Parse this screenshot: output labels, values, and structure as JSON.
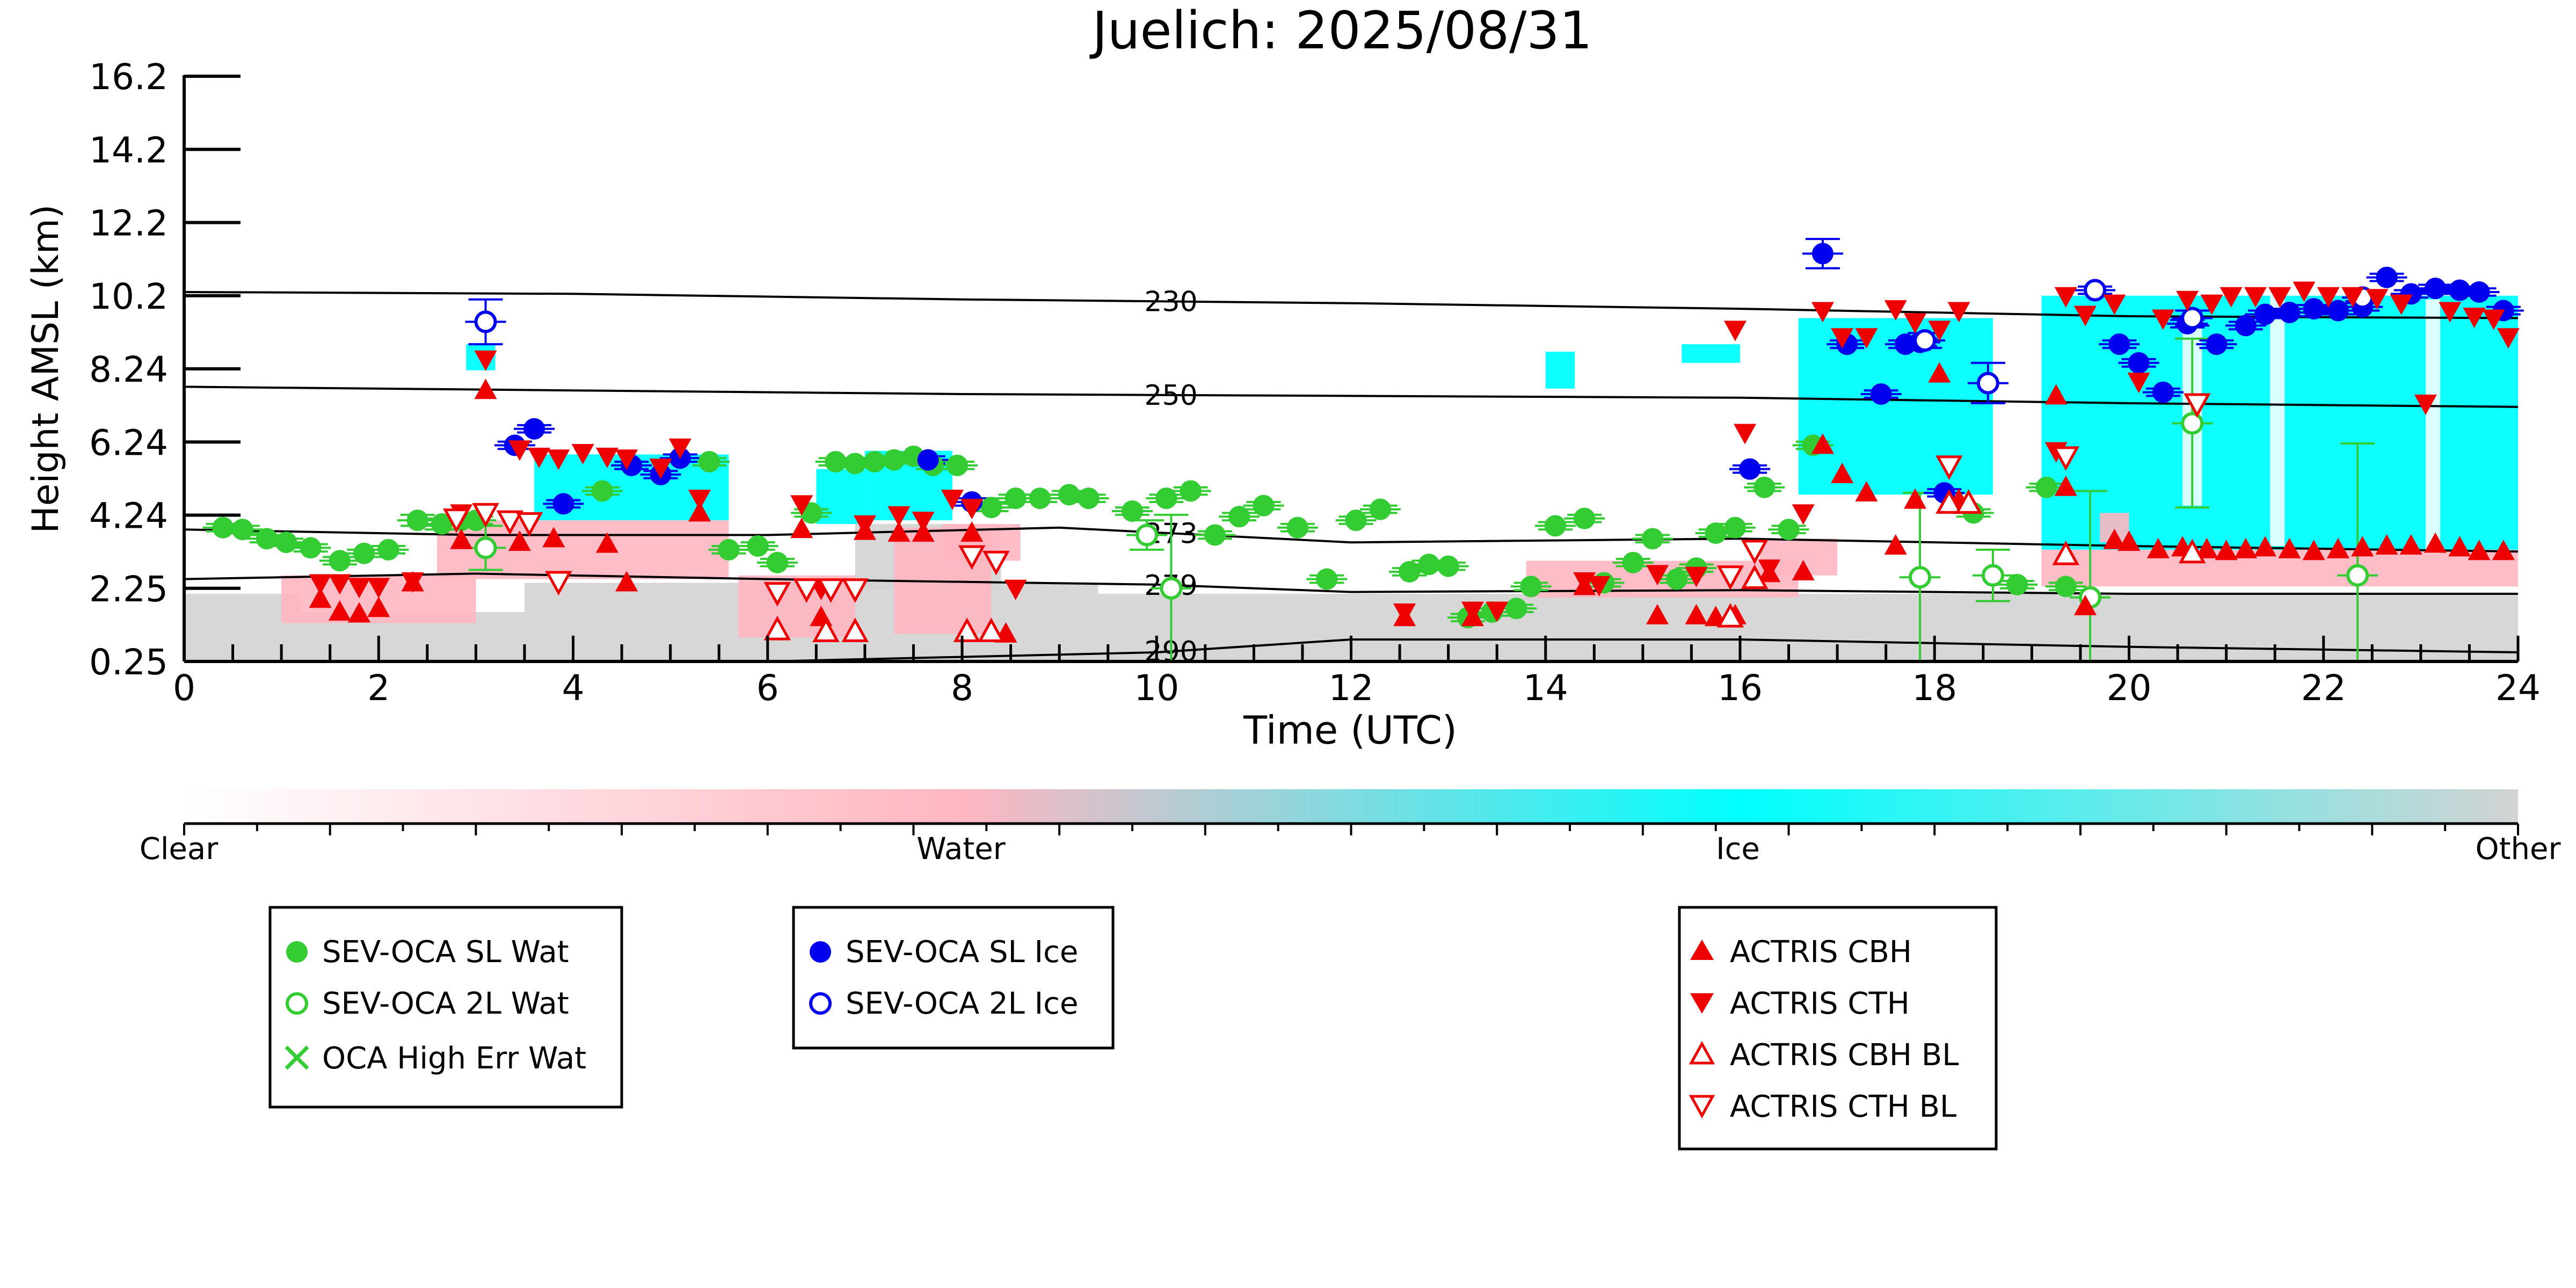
{
  "chart_data": {
    "type": "scatter",
    "title": "Juelich: 2025/08/31",
    "xlabel": "Time (UTC)",
    "ylabel": "Height AMSL (km)",
    "xlim": [
      0,
      24
    ],
    "ylim": [
      0.25,
      16.2
    ],
    "xticks": [
      "0",
      "2",
      "4",
      "6",
      "8",
      "10",
      "12",
      "14",
      "16",
      "18",
      "20",
      "22",
      "24"
    ],
    "yticks": [
      "0.25",
      "2.25",
      "4.24",
      "6.24",
      "8.24",
      "10.2",
      "12.2",
      "14.2",
      "16.2"
    ],
    "ytick_values": [
      0.25,
      2.25,
      4.24,
      6.24,
      8.24,
      10.2,
      12.2,
      14.2,
      16.2
    ],
    "colorbar": {
      "labels": [
        "Clear",
        "Water",
        "Ice",
        "Other"
      ],
      "colors": [
        "#ffffff",
        "#ffb6c1",
        "#00ffff",
        "#d3d3d3"
      ]
    },
    "contours": [
      {
        "label": "230",
        "points": [
          [
            0,
            10.3
          ],
          [
            4,
            10.25
          ],
          [
            8,
            10.1
          ],
          [
            12,
            10.0
          ],
          [
            16,
            9.85
          ],
          [
            20,
            9.65
          ],
          [
            24,
            9.6
          ]
        ],
        "label_x": 10.15
      },
      {
        "label": "250",
        "points": [
          [
            0,
            7.75
          ],
          [
            4,
            7.65
          ],
          [
            8,
            7.55
          ],
          [
            12,
            7.5
          ],
          [
            16,
            7.45
          ],
          [
            20,
            7.3
          ],
          [
            24,
            7.2
          ]
        ],
        "label_x": 10.15
      },
      {
        "label": "273",
        "points": [
          [
            0,
            3.85
          ],
          [
            3,
            3.7
          ],
          [
            6,
            3.7
          ],
          [
            9,
            3.9
          ],
          [
            12,
            3.5
          ],
          [
            16,
            3.6
          ],
          [
            20,
            3.4
          ],
          [
            24,
            3.25
          ]
        ],
        "label_x": 10.15
      },
      {
        "label": "279",
        "points": [
          [
            0,
            2.5
          ],
          [
            3,
            2.65
          ],
          [
            6,
            2.5
          ],
          [
            10,
            2.35
          ],
          [
            12,
            2.15
          ],
          [
            16,
            2.2
          ],
          [
            20,
            2.1
          ],
          [
            24,
            2.1
          ]
        ],
        "label_x": 10.15
      },
      {
        "label": "290",
        "points": [
          [
            0,
            0.25
          ],
          [
            6,
            0.25
          ],
          [
            10,
            0.5
          ],
          [
            12,
            0.85
          ],
          [
            14,
            0.85
          ],
          [
            16,
            0.85
          ],
          [
            20,
            0.65
          ],
          [
            24,
            0.5
          ]
        ],
        "label_x": 10.15
      }
    ],
    "series": [
      {
        "name": "SEV-OCA SL Wat",
        "marker": "circle",
        "filled": true,
        "color": "#33cc33",
        "x": [
          0.4,
          0.6,
          0.85,
          1.05,
          1.3,
          1.6,
          1.85,
          2.1,
          2.4,
          2.65,
          2.85,
          3.0,
          4.3,
          5.4,
          5.6,
          5.9,
          6.1,
          6.45,
          6.7,
          6.9,
          7.1,
          7.3,
          7.5,
          7.7,
          7.95,
          8.3,
          8.55,
          8.8,
          9.1,
          9.3,
          9.75,
          10.1,
          10.35,
          10.6,
          10.85,
          11.1,
          11.45,
          11.75,
          12.05,
          12.3,
          12.6,
          12.8,
          13.0,
          13.2,
          13.45,
          13.7,
          13.85,
          14.1,
          14.4,
          14.6,
          14.9,
          15.1,
          15.35,
          15.55,
          15.75,
          15.95,
          16.25,
          16.5,
          16.75,
          18.4,
          18.85,
          19.15,
          19.35
        ],
        "y": [
          3.9,
          3.85,
          3.6,
          3.5,
          3.35,
          3.0,
          3.2,
          3.3,
          4.1,
          4.0,
          4.1,
          4.1,
          4.9,
          5.7,
          3.3,
          3.4,
          2.95,
          4.3,
          5.7,
          5.65,
          5.7,
          5.75,
          5.85,
          5.6,
          5.6,
          4.45,
          4.7,
          4.7,
          4.8,
          4.7,
          4.35,
          4.7,
          4.9,
          3.7,
          4.2,
          4.5,
          3.9,
          2.5,
          4.1,
          4.4,
          2.7,
          2.9,
          2.85,
          1.45,
          1.6,
          1.7,
          2.3,
          3.95,
          4.15,
          2.4,
          2.95,
          3.6,
          2.5,
          2.8,
          3.75,
          3.9,
          5.0,
          3.85,
          6.15,
          4.3,
          2.35,
          5.0,
          2.3
        ],
        "err": [
          0.1,
          0.1,
          0.1,
          0.1,
          0.1,
          0.1,
          0.1,
          0.1,
          0.15,
          0.15,
          0.1,
          0.1,
          0.1,
          0.1,
          0.1,
          0.1,
          0.1,
          0.1,
          0.1,
          0.1,
          0.1,
          0.1,
          0.1,
          0.1,
          0.1,
          0.1,
          0.1,
          0.1,
          0.1,
          0.1,
          0.1,
          0.1,
          0.1,
          0.1,
          0.1,
          0.1,
          0.1,
          0.1,
          0.1,
          0.1,
          0.1,
          0.1,
          0.1,
          0.1,
          0.1,
          0.1,
          0.1,
          0.1,
          0.1,
          0.1,
          0.1,
          0.1,
          0.1,
          0.1,
          0.1,
          0.1,
          0.1,
          0.1,
          0.1,
          0.1,
          0.1,
          0.1,
          0.1
        ]
      },
      {
        "name": "SEV-OCA 2L Wat",
        "marker": "circle",
        "filled": false,
        "color": "#33cc33",
        "x": [
          3.1,
          9.9,
          10.15,
          17.85,
          18.6,
          19.6,
          20.65,
          22.35
        ],
        "y": [
          3.35,
          3.7,
          2.25,
          2.55,
          2.6,
          2.0,
          6.75,
          2.6
        ],
        "err": [
          0.6,
          0.4,
          2.0,
          2.3,
          0.7,
          2.9,
          2.3,
          3.6
        ]
      },
      {
        "name": "OCA High Err Wat",
        "marker": "x",
        "filled": false,
        "color": "#33cc33",
        "x": [],
        "y": []
      },
      {
        "name": "SEV-OCA SL Ice",
        "marker": "circle",
        "filled": true,
        "color": "#0000ee",
        "x": [
          3.4,
          3.6,
          3.9,
          4.6,
          4.9,
          5.1,
          7.65,
          8.1,
          16.1,
          16.85,
          17.1,
          17.45,
          17.7,
          17.85,
          18.1,
          19.9,
          20.1,
          20.35,
          20.6,
          20.9,
          21.2,
          21.4,
          21.65,
          21.9,
          22.15,
          22.4,
          22.65,
          22.9,
          23.15,
          23.4,
          23.6,
          23.85
        ],
        "y": [
          6.15,
          6.6,
          4.55,
          5.6,
          5.35,
          5.8,
          5.75,
          4.6,
          5.5,
          11.35,
          8.9,
          7.55,
          8.9,
          8.95,
          4.85,
          8.9,
          8.4,
          7.6,
          9.45,
          8.9,
          9.4,
          9.7,
          9.75,
          9.85,
          9.8,
          9.9,
          10.7,
          10.25,
          10.4,
          10.35,
          10.3,
          9.8
        ],
        "err": [
          0.1,
          0.1,
          0.1,
          0.1,
          0.1,
          0.1,
          0.1,
          0.1,
          0.1,
          0.4,
          0.1,
          0.1,
          0.1,
          0.1,
          0.1,
          0.1,
          0.1,
          0.1,
          0.1,
          0.1,
          0.1,
          0.1,
          0.1,
          0.1,
          0.1,
          0.1,
          0.1,
          0.1,
          0.1,
          0.1,
          0.1,
          0.1
        ]
      },
      {
        "name": "SEV-OCA 2L Ice",
        "marker": "circle",
        "filled": false,
        "color": "#0000ee",
        "x": [
          3.1,
          17.9,
          18.55,
          19.65,
          20.65,
          22.4
        ],
        "y": [
          9.5,
          9.0,
          7.85,
          10.35,
          9.6,
          10.15
        ],
        "err": [
          0.6,
          0.2,
          0.55,
          0.1,
          0.2,
          0.1
        ]
      },
      {
        "name": "ACTRIS CBH",
        "marker": "triangle-up",
        "filled": true,
        "color": "#ee0000",
        "x": [
          1.4,
          1.6,
          1.8,
          2.0,
          2.35,
          2.85,
          3.1,
          3.45,
          3.8,
          4.35,
          4.55,
          5.3,
          6.35,
          6.55,
          7.0,
          7.35,
          7.6,
          8.1,
          8.45,
          12.55,
          13.25,
          14.4,
          15.15,
          15.55,
          15.75,
          15.95,
          16.3,
          16.65,
          16.85,
          17.05,
          17.3,
          17.6,
          17.8,
          18.05,
          18.25,
          19.25,
          19.35,
          19.55,
          19.85,
          20.0,
          20.3,
          20.55,
          20.8,
          21.0,
          21.2,
          21.4,
          21.65,
          21.9,
          22.15,
          22.4,
          22.65,
          22.9,
          23.15,
          23.4,
          23.6,
          23.85
        ],
        "y": [
          1.95,
          1.6,
          1.55,
          1.7,
          2.4,
          3.55,
          7.65,
          3.5,
          3.6,
          3.45,
          2.4,
          4.3,
          3.85,
          1.45,
          3.8,
          3.75,
          3.75,
          3.75,
          1.0,
          1.45,
          1.45,
          2.3,
          1.5,
          1.5,
          1.45,
          1.5,
          2.65,
          2.7,
          6.15,
          5.35,
          4.85,
          3.4,
          4.65,
          8.1,
          4.65,
          7.5,
          5.0,
          1.75,
          3.55,
          3.5,
          3.3,
          3.35,
          3.3,
          3.25,
          3.3,
          3.35,
          3.3,
          3.25,
          3.3,
          3.35,
          3.4,
          3.4,
          3.45,
          3.35,
          3.25,
          3.25
        ]
      },
      {
        "name": "ACTRIS CTH",
        "marker": "triangle-down",
        "filled": true,
        "color": "#ee0000",
        "x": [
          1.4,
          1.6,
          1.8,
          2.0,
          2.35,
          2.85,
          3.1,
          3.45,
          3.65,
          3.85,
          4.1,
          4.35,
          4.55,
          4.9,
          5.1,
          5.3,
          6.35,
          6.55,
          7.0,
          7.35,
          7.6,
          7.9,
          8.1,
          8.55,
          12.55,
          13.25,
          13.5,
          14.4,
          14.55,
          15.15,
          15.55,
          15.95,
          16.05,
          16.3,
          16.65,
          16.85,
          17.05,
          17.3,
          17.6,
          17.8,
          18.05,
          18.25,
          19.25,
          19.35,
          19.55,
          19.85,
          20.1,
          20.35,
          20.6,
          20.85,
          21.05,
          21.3,
          21.55,
          21.8,
          22.05,
          22.3,
          22.55,
          22.8,
          23.05,
          23.3,
          23.55,
          23.75,
          23.9
        ],
        "y": [
          2.4,
          2.4,
          2.3,
          2.3,
          2.45,
          4.3,
          8.5,
          6.05,
          5.85,
          5.8,
          5.95,
          5.85,
          5.8,
          5.55,
          6.1,
          4.7,
          4.55,
          2.25,
          4.0,
          4.25,
          4.1,
          4.7,
          4.45,
          2.25,
          1.6,
          1.65,
          1.65,
          2.45,
          2.35,
          2.65,
          2.6,
          9.3,
          6.5,
          2.8,
          4.3,
          9.8,
          9.1,
          9.1,
          9.85,
          9.5,
          9.3,
          9.8,
          6.0,
          10.2,
          9.7,
          10.0,
          7.9,
          9.6,
          10.1,
          10.0,
          10.2,
          10.2,
          10.2,
          10.35,
          10.2,
          10.2,
          10.15,
          10.0,
          7.3,
          9.8,
          9.65,
          9.6,
          9.1
        ]
      },
      {
        "name": "ACTRIS CBH BL",
        "marker": "triangle-up",
        "filled": false,
        "color": "#ee0000",
        "x": [
          6.1,
          6.6,
          6.9,
          8.05,
          8.3,
          15.9,
          16.15,
          18.15,
          18.35,
          19.35,
          20.65
        ],
        "y": [
          1.1,
          1.05,
          1.05,
          1.05,
          1.05,
          1.45,
          2.5,
          4.55,
          4.55,
          3.15,
          3.2
        ]
      },
      {
        "name": "ACTRIS CTH BL",
        "marker": "triangle-down",
        "filled": false,
        "color": "#ee0000",
        "x": [
          2.8,
          3.1,
          3.35,
          3.55,
          3.85,
          6.1,
          6.4,
          6.65,
          6.9,
          8.1,
          8.35,
          15.9,
          16.15,
          18.15,
          19.35,
          20.7
        ],
        "y": [
          4.15,
          4.3,
          4.1,
          4.05,
          2.45,
          2.15,
          2.25,
          2.25,
          2.25,
          3.15,
          3.0,
          2.6,
          3.3,
          5.6,
          5.85,
          7.3
        ]
      }
    ],
    "grid": false,
    "legend_position": "below"
  }
}
